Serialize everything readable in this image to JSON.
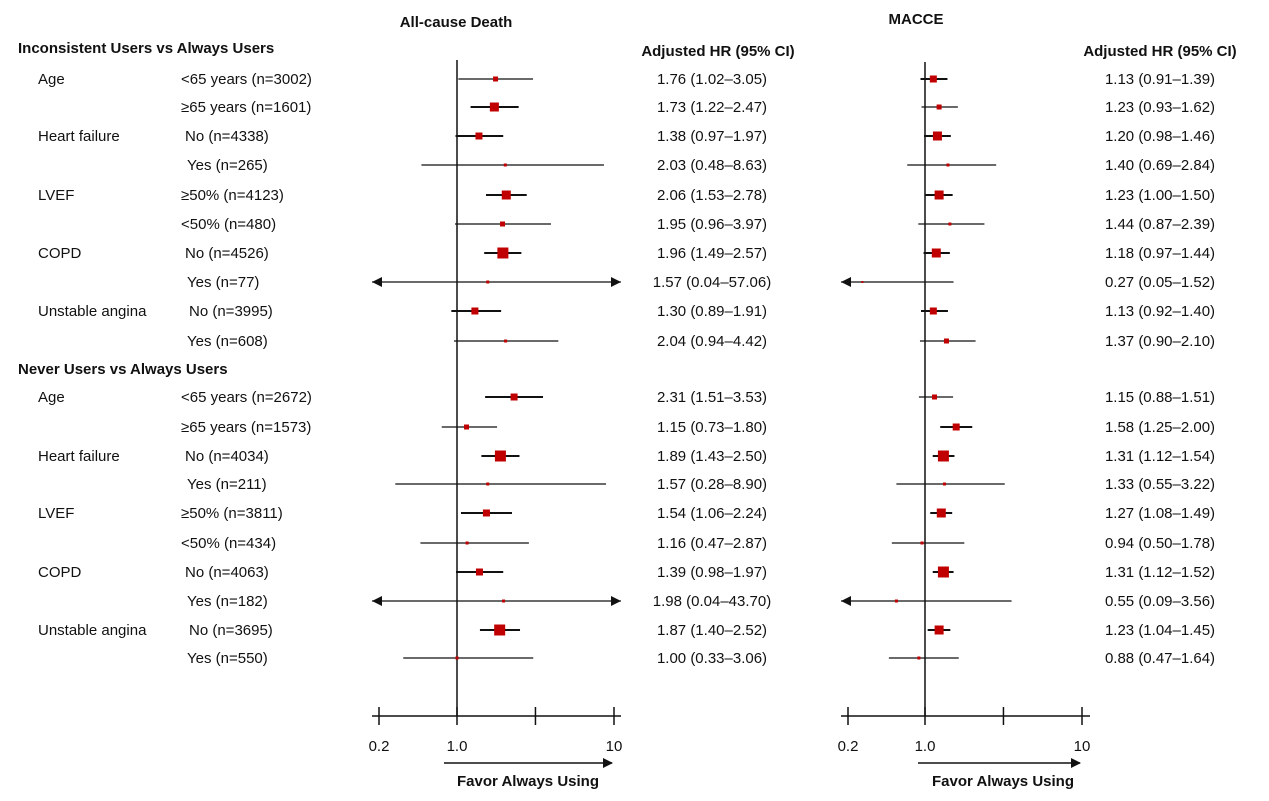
{
  "chart_data": [
    {
      "type": "forest",
      "title": "All-cause Death",
      "column_header": "Adjusted HR (95% CI)",
      "xscale": "log",
      "xlim": [
        0.16,
        11
      ],
      "reference": 1.0,
      "xticks": [
        0.2,
        1.0,
        3.16,
        10
      ],
      "xtick_labels": [
        "0.2",
        "1.0",
        "",
        "10"
      ],
      "xlabel": "Favor Always Using",
      "groups": [
        {
          "label": "Inconsistent Users vs Always Users",
          "rows": [
            {
              "variable": "Age",
              "subgroup": "<65 years (n=3002)",
              "hr": 1.76,
              "lo": 1.02,
              "hi": 3.05,
              "text": "1.76 (1.02–3.05)",
              "weight": 2
            },
            {
              "variable": "",
              "subgroup": "≥65 years (n=1601)",
              "hr": 1.73,
              "lo": 1.22,
              "hi": 2.47,
              "text": "1.73 (1.22–2.47)",
              "weight": 4
            },
            {
              "variable": "Heart failure",
              "subgroup": "No (n=4338)",
              "hr": 1.38,
              "lo": 0.97,
              "hi": 1.97,
              "text": "1.38 (0.97–1.97)",
              "weight": 3
            },
            {
              "variable": "",
              "subgroup": "Yes (n=265)",
              "hr": 2.03,
              "lo": 0.48,
              "hi": 8.63,
              "text": "2.03 (0.48–8.63)",
              "weight": 1
            },
            {
              "variable": "LVEF",
              "subgroup": "≥50% (n=4123)",
              "hr": 2.06,
              "lo": 1.53,
              "hi": 2.78,
              "text": "2.06 (1.53–2.78)",
              "weight": 4
            },
            {
              "variable": "",
              "subgroup": "<50% (n=480)",
              "hr": 1.95,
              "lo": 0.96,
              "hi": 3.97,
              "text": "1.95 (0.96–3.97)",
              "weight": 2
            },
            {
              "variable": "COPD",
              "subgroup": "No (n=4526)",
              "hr": 1.96,
              "lo": 1.49,
              "hi": 2.57,
              "text": "1.96 (1.49–2.57)",
              "weight": 5
            },
            {
              "variable": "",
              "subgroup": "Yes (n=77)",
              "hr": 1.57,
              "lo": 0.04,
              "hi": 57.06,
              "text": "1.57 (0.04–57.06)",
              "weight": 1
            },
            {
              "variable": "Unstable angina",
              "subgroup": "No (n=3995)",
              "hr": 1.3,
              "lo": 0.89,
              "hi": 1.91,
              "text": "1.30 (0.89–1.91)",
              "weight": 3
            },
            {
              "variable": "",
              "subgroup": "Yes (n=608)",
              "hr": 2.04,
              "lo": 0.94,
              "hi": 4.42,
              "text": "2.04 (0.94–4.42)",
              "weight": 1
            }
          ]
        },
        {
          "label": "Never Users vs Always Users",
          "rows": [
            {
              "variable": "Age",
              "subgroup": "<65 years (n=2672)",
              "hr": 2.31,
              "lo": 1.51,
              "hi": 3.53,
              "text": "2.31 (1.51–3.53)",
              "weight": 3
            },
            {
              "variable": "",
              "subgroup": "≥65 years (n=1573)",
              "hr": 1.15,
              "lo": 0.73,
              "hi": 1.8,
              "text": "1.15 (0.73–1.80)",
              "weight": 2
            },
            {
              "variable": "Heart failure",
              "subgroup": "No (n=4034)",
              "hr": 1.89,
              "lo": 1.43,
              "hi": 2.5,
              "text": "1.89 (1.43–2.50)",
              "weight": 5
            },
            {
              "variable": "",
              "subgroup": "Yes (n=211)",
              "hr": 1.57,
              "lo": 0.28,
              "hi": 8.9,
              "text": "1.57 (0.28–8.90)",
              "weight": 1
            },
            {
              "variable": "LVEF",
              "subgroup": "≥50% (n=3811)",
              "hr": 1.54,
              "lo": 1.06,
              "hi": 2.24,
              "text": "1.54 (1.06–2.24)",
              "weight": 3
            },
            {
              "variable": "",
              "subgroup": "<50% (n=434)",
              "hr": 1.16,
              "lo": 0.47,
              "hi": 2.87,
              "text": "1.16 (0.47–2.87)",
              "weight": 1
            },
            {
              "variable": "COPD",
              "subgroup": "No (n=4063)",
              "hr": 1.39,
              "lo": 0.98,
              "hi": 1.97,
              "text": "1.39 (0.98–1.97)",
              "weight": 3
            },
            {
              "variable": "",
              "subgroup": "Yes (n=182)",
              "hr": 1.98,
              "lo": 0.04,
              "hi": 43.7,
              "text": "1.98 (0.04–43.70)",
              "weight": 1
            },
            {
              "variable": "Unstable angina",
              "subgroup": "No (n=3695)",
              "hr": 1.87,
              "lo": 1.4,
              "hi": 2.52,
              "text": "1.87 (1.40–2.52)",
              "weight": 5
            },
            {
              "variable": "",
              "subgroup": "Yes (n=550)",
              "hr": 1.0,
              "lo": 0.33,
              "hi": 3.06,
              "text": "1.00 (0.33–3.06)",
              "weight": 1
            }
          ]
        }
      ]
    },
    {
      "type": "forest",
      "title": "MACCE",
      "column_header": "Adjusted HR (95% CI)",
      "xscale": "log",
      "xlim": [
        0.16,
        11
      ],
      "reference": 1.0,
      "xticks": [
        0.2,
        1.0,
        3.16,
        10
      ],
      "xtick_labels": [
        "0.2",
        "1.0",
        "",
        "10"
      ],
      "xlabel": "Favor Always Using",
      "groups": [
        {
          "label": "Inconsistent Users vs Always Users",
          "rows": [
            {
              "hr": 1.13,
              "lo": 0.91,
              "hi": 1.39,
              "text": "1.13 (0.91–1.39)",
              "weight": 3
            },
            {
              "hr": 1.23,
              "lo": 0.93,
              "hi": 1.62,
              "text": "1.23 (0.93–1.62)",
              "weight": 2
            },
            {
              "hr": 1.2,
              "lo": 0.98,
              "hi": 1.46,
              "text": "1.20 (0.98–1.46)",
              "weight": 4
            },
            {
              "hr": 1.4,
              "lo": 0.69,
              "hi": 2.84,
              "text": "1.40 (0.69–2.84)",
              "weight": 1
            },
            {
              "hr": 1.23,
              "lo": 1.0,
              "hi": 1.5,
              "text": "1.23 (1.00–1.50)",
              "weight": 4
            },
            {
              "hr": 1.44,
              "lo": 0.87,
              "hi": 2.39,
              "text": "1.44 (0.87–2.39)",
              "weight": 1
            },
            {
              "hr": 1.18,
              "lo": 0.97,
              "hi": 1.44,
              "text": "1.18 (0.97–1.44)",
              "weight": 4
            },
            {
              "hr": 0.27,
              "lo": 0.05,
              "hi": 1.52,
              "text": "0.27 (0.05–1.52)",
              "weight": 0
            },
            {
              "hr": 1.13,
              "lo": 0.92,
              "hi": 1.4,
              "text": "1.13 (0.92–1.40)",
              "weight": 3
            },
            {
              "hr": 1.37,
              "lo": 0.9,
              "hi": 2.1,
              "text": "1.37 (0.90–2.10)",
              "weight": 2
            }
          ]
        },
        {
          "label": "Never Users vs Always Users",
          "rows": [
            {
              "hr": 1.15,
              "lo": 0.88,
              "hi": 1.51,
              "text": "1.15 (0.88–1.51)",
              "weight": 2
            },
            {
              "hr": 1.58,
              "lo": 1.25,
              "hi": 2.0,
              "text": "1.58 (1.25–2.00)",
              "weight": 3
            },
            {
              "hr": 1.31,
              "lo": 1.12,
              "hi": 1.54,
              "text": "1.31 (1.12–1.54)",
              "weight": 5
            },
            {
              "hr": 1.33,
              "lo": 0.55,
              "hi": 3.22,
              "text": "1.33 (0.55–3.22)",
              "weight": 1
            },
            {
              "hr": 1.27,
              "lo": 1.08,
              "hi": 1.49,
              "text": "1.27 (1.08–1.49)",
              "weight": 4
            },
            {
              "hr": 0.94,
              "lo": 0.5,
              "hi": 1.78,
              "text": "0.94 (0.50–1.78)",
              "weight": 1
            },
            {
              "hr": 1.31,
              "lo": 1.12,
              "hi": 1.52,
              "text": "1.31 (1.12–1.52)",
              "weight": 5
            },
            {
              "hr": 0.55,
              "lo": 0.09,
              "hi": 3.56,
              "text": "0.55 (0.09–3.56)",
              "weight": 1
            },
            {
              "hr": 1.23,
              "lo": 1.04,
              "hi": 1.45,
              "text": "1.23 (1.04–1.45)",
              "weight": 4
            },
            {
              "hr": 0.88,
              "lo": 0.47,
              "hi": 1.64,
              "text": "0.88 (0.47–1.64)",
              "weight": 1
            }
          ]
        }
      ]
    }
  ],
  "colors": {
    "marker": "#c00000",
    "line": "#111111",
    "text": "#111111"
  }
}
